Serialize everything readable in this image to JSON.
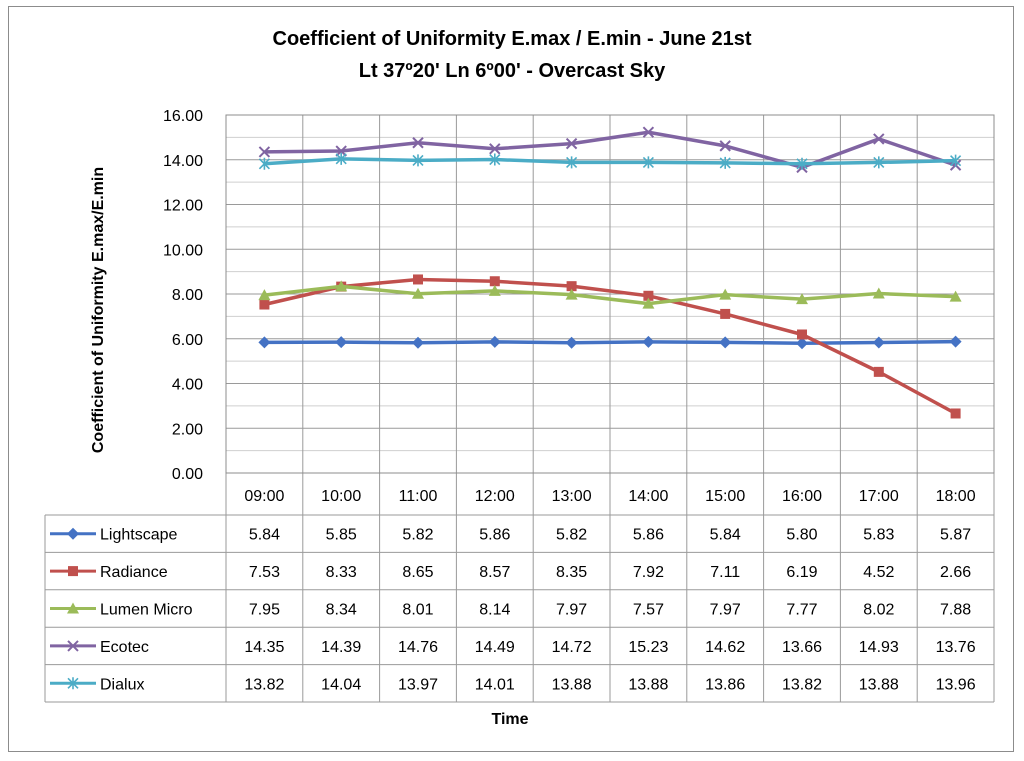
{
  "chart_data": {
    "type": "line",
    "title": "Coefficient of Uniformity E.max / E.min - June 21st",
    "subtitle": "Lt 37º20' Ln 6º00' - Overcast Sky",
    "xlabel": "Time",
    "ylabel": "Coefficient of Uniformity E.max/E.min",
    "ylim": [
      0,
      16
    ],
    "ytick_step": 2,
    "ytick_labels": [
      "0.00",
      "2.00",
      "4.00",
      "6.00",
      "8.00",
      "10.00",
      "12.00",
      "14.00",
      "16.00"
    ],
    "grid": true,
    "legend": "data-table",
    "categories": [
      "09:00",
      "10:00",
      "11:00",
      "12:00",
      "13:00",
      "14:00",
      "15:00",
      "16:00",
      "17:00",
      "18:00"
    ],
    "series": [
      {
        "name": "Lightscape",
        "color": "#4472c4",
        "marker": "diamond",
        "values": [
          5.84,
          5.85,
          5.82,
          5.86,
          5.82,
          5.86,
          5.84,
          5.8,
          5.83,
          5.87
        ]
      },
      {
        "name": "Radiance",
        "color": "#c0504d",
        "marker": "square",
        "values": [
          7.53,
          8.33,
          8.65,
          8.57,
          8.35,
          7.92,
          7.11,
          6.19,
          4.52,
          2.66
        ]
      },
      {
        "name": "Lumen Micro",
        "color": "#9bbb59",
        "marker": "triangle",
        "values": [
          7.95,
          8.34,
          8.01,
          8.14,
          7.97,
          7.57,
          7.97,
          7.77,
          8.02,
          7.88
        ]
      },
      {
        "name": "Ecotec",
        "color": "#8064a2",
        "marker": "x",
        "values": [
          14.35,
          14.39,
          14.76,
          14.49,
          14.72,
          15.23,
          14.62,
          13.66,
          14.93,
          13.76
        ]
      },
      {
        "name": "Dialux",
        "color": "#4bacc6",
        "marker": "star",
        "values": [
          13.82,
          14.04,
          13.97,
          14.01,
          13.88,
          13.88,
          13.86,
          13.82,
          13.88,
          13.96
        ]
      }
    ]
  }
}
